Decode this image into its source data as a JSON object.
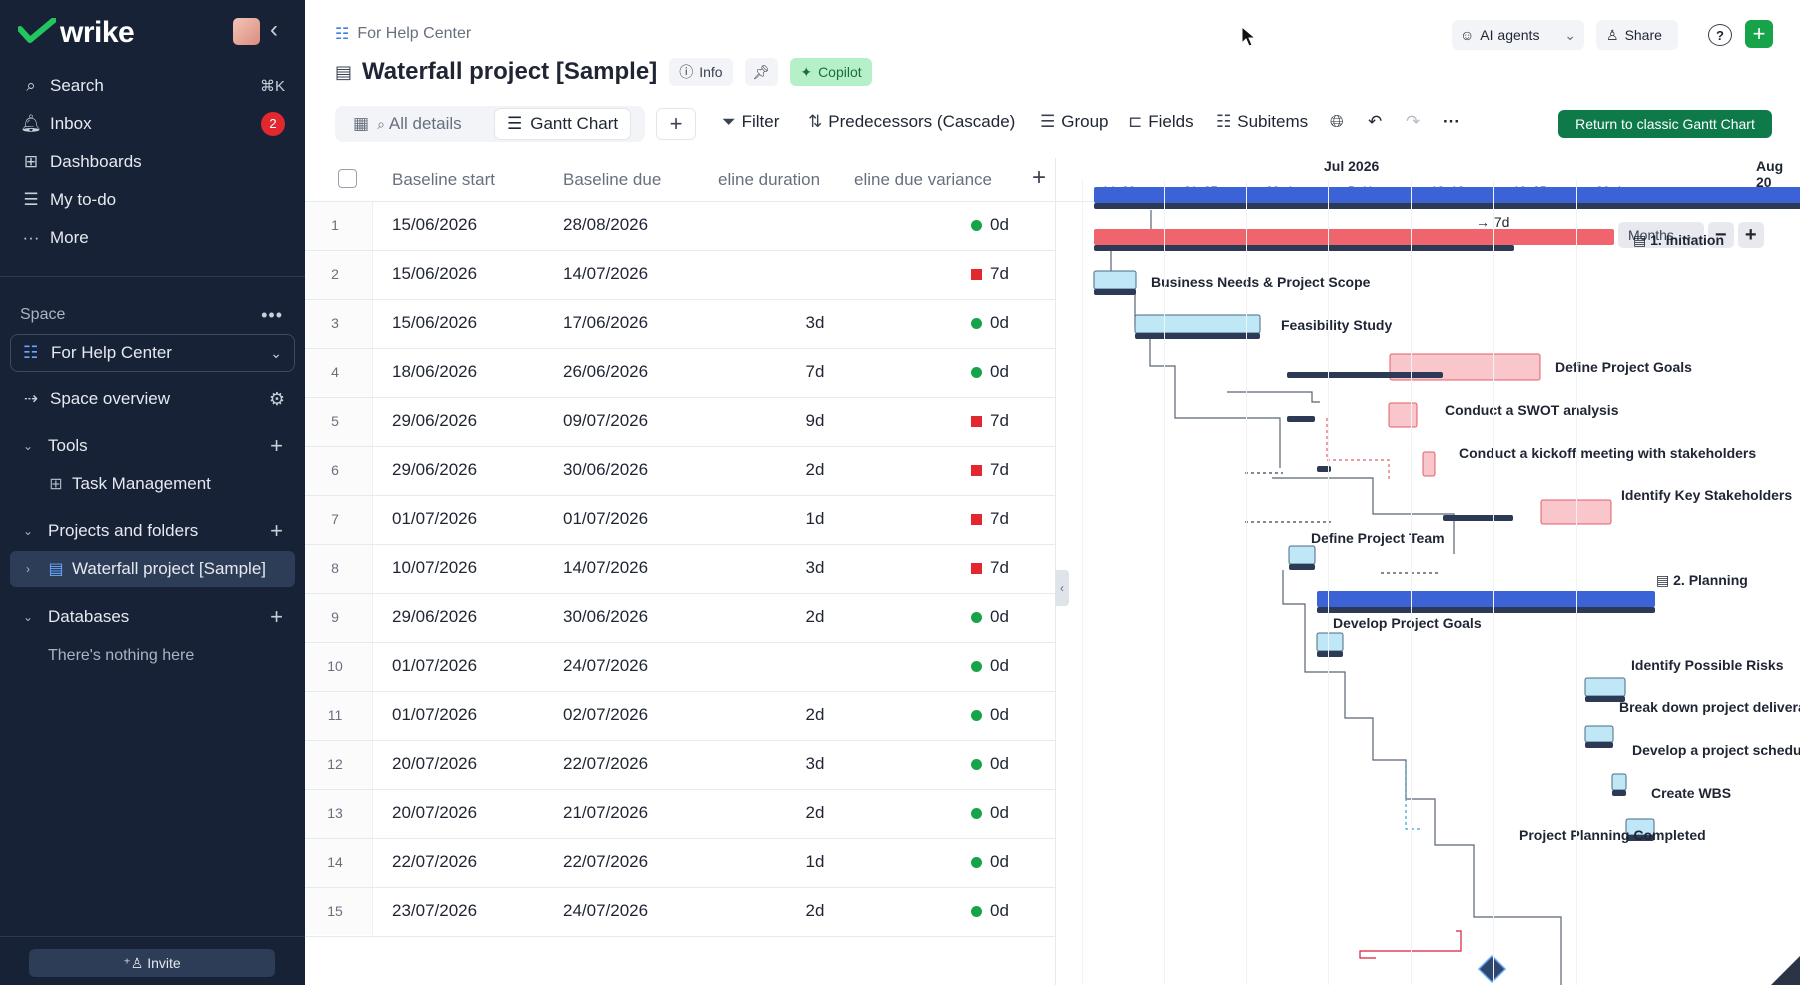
{
  "app": {
    "logo": "wrike"
  },
  "sidebar": {
    "nav": [
      {
        "label": "Search",
        "icon": "search-icon",
        "shortcut": "⌘K"
      },
      {
        "label": "Inbox",
        "icon": "bell-icon",
        "badge": "2"
      },
      {
        "label": "Dashboards",
        "icon": "dashboard-icon"
      },
      {
        "label": "My to-do",
        "icon": "todo-icon"
      },
      {
        "label": "More",
        "icon": "more-icon"
      }
    ],
    "space_label": "Space",
    "space_selected": "For Help Center",
    "space_overview": "Space overview",
    "tools_label": "Tools",
    "task_management": "Task Management",
    "projects_label": "Projects and folders",
    "project_item": "Waterfall project [Sample]",
    "databases_label": "Databases",
    "databases_empty": "There's nothing here",
    "invite": "Invite"
  },
  "header": {
    "breadcrumb": "For Help Center",
    "title": "Waterfall project [Sample]",
    "info": "Info",
    "copilot": "Copilot",
    "ai_agents": "AI agents",
    "share": "Share",
    "help": "?"
  },
  "toolbar": {
    "tabs": [
      "All details",
      "Gantt Chart"
    ],
    "filter": "Filter",
    "predecessors": "Predecessors (Cascade)",
    "group": "Group",
    "fields": "Fields",
    "subitems": "Subitems",
    "return": "Return to classic Gantt Chart"
  },
  "table": {
    "columns": [
      "Baseline start",
      "Baseline due",
      "eline duration",
      "eline due variance"
    ],
    "rows": [
      {
        "n": "1",
        "start": "15/06/2026",
        "due": "28/08/2026",
        "dur": "",
        "var": "0d",
        "status": "ok"
      },
      {
        "n": "2",
        "start": "15/06/2026",
        "due": "14/07/2026",
        "dur": "",
        "var": "7d",
        "status": "late"
      },
      {
        "n": "3",
        "start": "15/06/2026",
        "due": "17/06/2026",
        "dur": "3d",
        "var": "0d",
        "status": "ok"
      },
      {
        "n": "4",
        "start": "18/06/2026",
        "due": "26/06/2026",
        "dur": "7d",
        "var": "0d",
        "status": "ok"
      },
      {
        "n": "5",
        "start": "29/06/2026",
        "due": "09/07/2026",
        "dur": "9d",
        "var": "7d",
        "status": "late"
      },
      {
        "n": "6",
        "start": "29/06/2026",
        "due": "30/06/2026",
        "dur": "2d",
        "var": "7d",
        "status": "late"
      },
      {
        "n": "7",
        "start": "01/07/2026",
        "due": "01/07/2026",
        "dur": "1d",
        "var": "7d",
        "status": "late"
      },
      {
        "n": "8",
        "start": "10/07/2026",
        "due": "14/07/2026",
        "dur": "3d",
        "var": "7d",
        "status": "late"
      },
      {
        "n": "9",
        "start": "29/06/2026",
        "due": "30/06/2026",
        "dur": "2d",
        "var": "0d",
        "status": "ok"
      },
      {
        "n": "10",
        "start": "01/07/2026",
        "due": "24/07/2026",
        "dur": "",
        "var": "0d",
        "status": "ok"
      },
      {
        "n": "11",
        "start": "01/07/2026",
        "due": "02/07/2026",
        "dur": "2d",
        "var": "0d",
        "status": "ok"
      },
      {
        "n": "12",
        "start": "20/07/2026",
        "due": "22/07/2026",
        "dur": "3d",
        "var": "0d",
        "status": "ok"
      },
      {
        "n": "13",
        "start": "20/07/2026",
        "due": "21/07/2026",
        "dur": "2d",
        "var": "0d",
        "status": "ok"
      },
      {
        "n": "14",
        "start": "22/07/2026",
        "due": "22/07/2026",
        "dur": "1d",
        "var": "0d",
        "status": "ok"
      },
      {
        "n": "15",
        "start": "23/07/2026",
        "due": "24/07/2026",
        "dur": "2d",
        "var": "0d",
        "status": "ok"
      }
    ]
  },
  "gantt": {
    "months": [
      "Jul 2026",
      "Aug 20"
    ],
    "weeks": [
      "14–20",
      "21–27",
      "28–4",
      "5–11",
      "12–18",
      "19–25",
      "26–1"
    ],
    "scale": "Months",
    "lag_label": "→ 7d",
    "tasks": [
      "1. Initiation",
      "Business Needs & Project Scope",
      "Feasibility Study",
      "Define Project Goals",
      "Conduct a SWOT analysis",
      "Conduct a kickoff meeting with stakeholders",
      "Identify Key Stakeholders",
      "Define Project Team",
      "2. Planning",
      "Develop Project Goals",
      "Identify Possible Risks",
      "Break down project deliverables",
      "Develop a project schedule",
      "Create WBS",
      "Project Planning Completed"
    ]
  },
  "colors": {
    "sidebar_bg": "#172236",
    "ok": "#16a34a",
    "late": "#e0282e",
    "phase_bar": "#3b63d6",
    "late_bar": "#f0656d",
    "task_bar": "#bfe7f6",
    "baseline": "#2d3a55",
    "return_btn": "#0e7a4a"
  }
}
